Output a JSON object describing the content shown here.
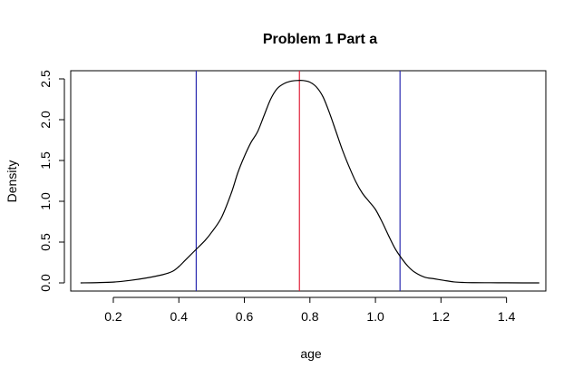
{
  "chart_data": {
    "type": "line",
    "title": "Problem 1 Part a",
    "xlabel": "age",
    "ylabel": "Density",
    "xlim": [
      0.07,
      1.52
    ],
    "ylim": [
      -0.1,
      2.6
    ],
    "x_ticks": [
      "0.2",
      "0.4",
      "0.6",
      "0.8",
      "1.0",
      "1.2",
      "1.4"
    ],
    "y_ticks": [
      "0.0",
      "0.5",
      "1.0",
      "1.5",
      "2.0",
      "2.5"
    ],
    "grid": false,
    "series": [
      {
        "color": "#000000",
        "x": [
          0.1,
          0.15,
          0.2,
          0.25,
          0.3,
          0.35,
          0.38,
          0.4,
          0.42,
          0.45,
          0.48,
          0.5,
          0.53,
          0.56,
          0.58,
          0.6,
          0.62,
          0.64,
          0.66,
          0.68,
          0.7,
          0.72,
          0.74,
          0.76,
          0.78,
          0.8,
          0.82,
          0.84,
          0.86,
          0.88,
          0.9,
          0.92,
          0.94,
          0.96,
          0.98,
          1.0,
          1.02,
          1.04,
          1.06,
          1.08,
          1.1,
          1.12,
          1.15,
          1.18,
          1.21,
          1.24,
          1.27,
          1.3,
          1.35,
          1.4,
          1.45,
          1.5
        ],
        "y": [
          0.0,
          0.003,
          0.01,
          0.03,
          0.06,
          0.1,
          0.14,
          0.2,
          0.28,
          0.4,
          0.52,
          0.62,
          0.8,
          1.1,
          1.35,
          1.55,
          1.72,
          1.85,
          2.05,
          2.25,
          2.38,
          2.44,
          2.47,
          2.48,
          2.48,
          2.46,
          2.4,
          2.28,
          2.08,
          1.85,
          1.62,
          1.42,
          1.24,
          1.1,
          1.0,
          0.9,
          0.75,
          0.58,
          0.42,
          0.3,
          0.2,
          0.13,
          0.07,
          0.05,
          0.03,
          0.012,
          0.005,
          0.003,
          0.002,
          0.001,
          0.0,
          0.0
        ]
      }
    ],
    "vlines": [
      {
        "x": 0.453,
        "color": "#2b2bb0"
      },
      {
        "x": 0.768,
        "color": "#e0203a"
      },
      {
        "x": 1.075,
        "color": "#2b2bb0"
      }
    ]
  }
}
